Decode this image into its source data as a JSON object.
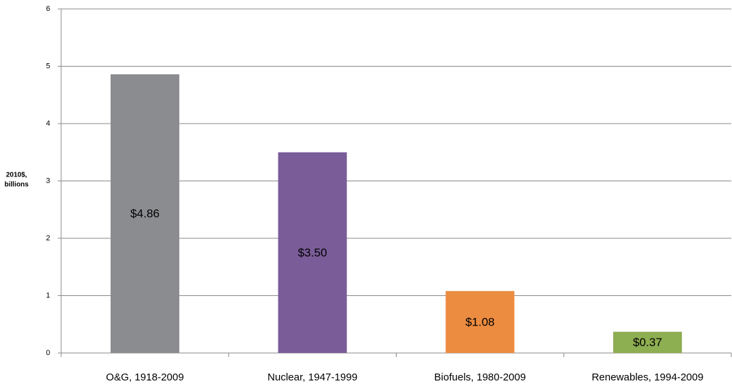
{
  "chart_data": {
    "type": "bar",
    "y_label": [
      "2010$,",
      "billions"
    ],
    "categories": [
      "O&G, 1918-2009",
      "Nuclear, 1947-1999",
      "Biofuels, 1980-2009",
      "Renewables, 1994-2009"
    ],
    "values": [
      4.86,
      3.5,
      1.08,
      0.37
    ],
    "value_labels": [
      "$4.86",
      "$3.50",
      "$1.08",
      "$0.37"
    ],
    "colors": [
      "#8b8c8f",
      "#7a5c98",
      "#ec8c40",
      "#8eae52"
    ],
    "ylim": [
      0,
      6
    ],
    "yticks": [
      0,
      1,
      2,
      3,
      4,
      5,
      6
    ],
    "grid": true
  }
}
